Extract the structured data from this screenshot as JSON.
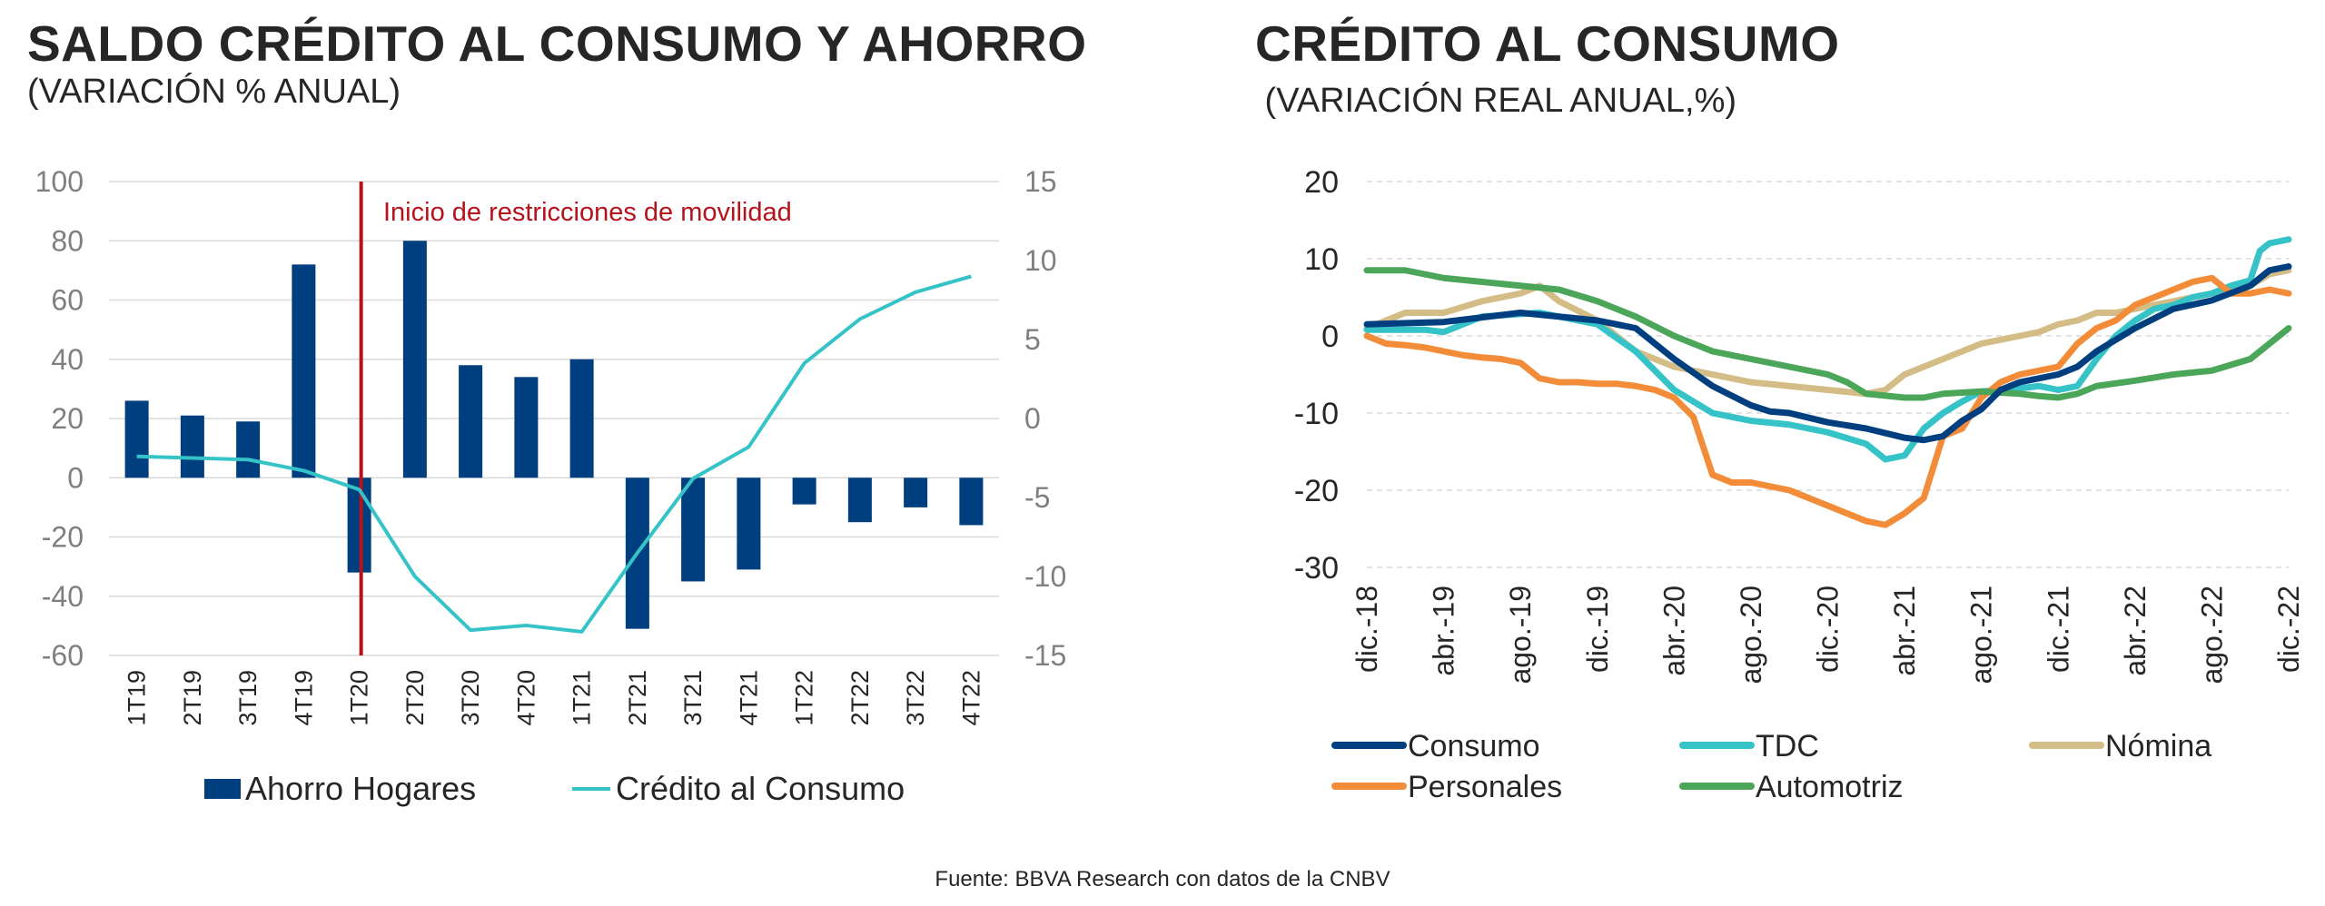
{
  "left": {
    "title": "SALDO CRÉDITO AL CONSUMO Y AHORRO",
    "subtitle": "(VARIACIÓN % ANUAL)",
    "annotation": "Inicio de restricciones de movilidad",
    "legend": [
      "Ahorro Hogares",
      "Crédito al Consumo"
    ]
  },
  "right": {
    "title": "CRÉDITO AL CONSUMO",
    "subtitle": " (VARIACIÓN REAL ANUAL,%)"
  },
  "source": "Fuente: BBVA Research con datos de la CNBV",
  "colors": {
    "navy": "#003F7F",
    "cyan": "#35C3C8",
    "red": "#B5121B",
    "tan": "#D4BC86",
    "orange": "#F28C38",
    "green": "#4CA65A",
    "grid": "#D9D9D9",
    "axis": "#7F7F7F"
  },
  "chart_data": [
    {
      "type": "bar",
      "title": "SALDO CRÉDITO AL CONSUMO Y AHORRO",
      "subtitle": "(VARIACIÓN % ANUAL)",
      "categories": [
        "1T19",
        "2T19",
        "3T19",
        "4T19",
        "1T20",
        "2T20",
        "3T20",
        "4T20",
        "1T21",
        "2T21",
        "3T21",
        "4T21",
        "1T22",
        "2T22",
        "3T22",
        "4T22"
      ],
      "series": [
        {
          "name": "Ahorro Hogares",
          "kind": "bar",
          "axis": "left",
          "values": [
            26,
            21,
            19,
            72,
            -32,
            80,
            38,
            34,
            40,
            -51,
            -35,
            -31,
            -9,
            -15,
            -10,
            -16
          ]
        },
        {
          "name": "Crédito al Consumo",
          "kind": "line",
          "axis": "right",
          "values": [
            -2.4,
            -2.5,
            -2.6,
            -3.3,
            -4.5,
            -10.0,
            -13.4,
            -13.1,
            -13.5,
            -8.5,
            -3.8,
            -1.8,
            3.5,
            6.3,
            8.0,
            9.0
          ]
        }
      ],
      "ylim_left": [
        -60,
        100
      ],
      "yticks_left": [
        100,
        80,
        60,
        40,
        20,
        0,
        -20,
        -40,
        -60
      ],
      "ylim_right": [
        -15,
        15
      ],
      "yticks_right": [
        15,
        10,
        5,
        0,
        -5,
        -10,
        -15
      ],
      "annotation": {
        "text": "Inicio de restricciones de movilidad",
        "at_category": "1T20"
      },
      "legend": [
        "Ahorro Hogares",
        "Crédito al Consumo"
      ],
      "grid": true
    },
    {
      "type": "line",
      "title": "CRÉDITO AL CONSUMO",
      "subtitle": "(VARIACIÓN REAL ANUAL,%)",
      "x_ticks": [
        "dic.-18",
        "abr.-19",
        "ago.-19",
        "dic.-19",
        "abr.-20",
        "ago.-20",
        "dic.-20",
        "abr.-21",
        "ago.-21",
        "dic.-21",
        "abr.-22",
        "ago.-22",
        "dic.-22"
      ],
      "x_range_months": [
        0,
        48
      ],
      "ylim": [
        -30,
        20
      ],
      "yticks": [
        20,
        10,
        0,
        -10,
        -20,
        -30
      ],
      "grid": true,
      "legend": [
        "Consumo",
        "TDC",
        "Nómina",
        "Personales",
        "Automotriz"
      ],
      "series": [
        {
          "name": "Consumo",
          "color": "#003F7F",
          "points": [
            [
              0,
              1.5
            ],
            [
              4,
              1.8
            ],
            [
              8,
              3
            ],
            [
              12,
              2
            ],
            [
              14,
              1
            ],
            [
              16,
              -3
            ],
            [
              18,
              -6.5
            ],
            [
              20,
              -9
            ],
            [
              21,
              -9.8
            ],
            [
              22,
              -10
            ],
            [
              24,
              -11.2
            ],
            [
              26,
              -12
            ],
            [
              28,
              -13.2
            ],
            [
              29,
              -13.5
            ],
            [
              30,
              -13
            ],
            [
              31,
              -11
            ],
            [
              32,
              -9.5
            ],
            [
              33,
              -7
            ],
            [
              34,
              -6
            ],
            [
              35,
              -5.5
            ],
            [
              36,
              -5
            ],
            [
              37,
              -4
            ],
            [
              38,
              -2
            ],
            [
              40,
              1
            ],
            [
              42,
              3.5
            ],
            [
              44,
              4.6
            ],
            [
              46,
              6.5
            ],
            [
              47,
              8.5
            ],
            [
              48,
              9
            ]
          ]
        },
        {
          "name": "TDC",
          "color": "#35C3C8",
          "points": [
            [
              0,
              0.8
            ],
            [
              3,
              0.8
            ],
            [
              4,
              0.5
            ],
            [
              6,
              2.5
            ],
            [
              9,
              3
            ],
            [
              12,
              1.5
            ],
            [
              14,
              -2
            ],
            [
              16,
              -7
            ],
            [
              18,
              -10
            ],
            [
              20,
              -11
            ],
            [
              22,
              -11.5
            ],
            [
              24,
              -12.5
            ],
            [
              26,
              -14
            ],
            [
              27,
              -16
            ],
            [
              28,
              -15.5
            ],
            [
              29,
              -12
            ],
            [
              30,
              -10
            ],
            [
              31,
              -8.5
            ],
            [
              32,
              -7.2
            ],
            [
              33,
              -7
            ],
            [
              34,
              -6.8
            ],
            [
              35,
              -6.5
            ],
            [
              36,
              -7
            ],
            [
              37,
              -6.5
            ],
            [
              38,
              -3
            ],
            [
              39,
              0
            ],
            [
              40,
              2
            ],
            [
              41,
              3.5
            ],
            [
              42,
              4
            ],
            [
              43,
              5
            ],
            [
              44,
              5.5
            ],
            [
              45,
              6.5
            ],
            [
              46,
              7.2
            ],
            [
              46.5,
              11
            ],
            [
              47,
              12
            ],
            [
              48,
              12.5
            ]
          ]
        },
        {
          "name": "Nómina",
          "color": "#D4BC86",
          "points": [
            [
              0,
              1
            ],
            [
              2,
              3
            ],
            [
              4,
              3
            ],
            [
              6,
              4.5
            ],
            [
              8,
              5.5
            ],
            [
              9,
              6.5
            ],
            [
              10,
              4.5
            ],
            [
              12,
              2
            ],
            [
              13,
              0
            ],
            [
              14,
              -2
            ],
            [
              16,
              -4
            ],
            [
              18,
              -5
            ],
            [
              20,
              -6
            ],
            [
              22,
              -6.5
            ],
            [
              24,
              -7
            ],
            [
              26,
              -7.5
            ],
            [
              27,
              -7
            ],
            [
              28,
              -5
            ],
            [
              29,
              -4
            ],
            [
              30,
              -3
            ],
            [
              31,
              -2
            ],
            [
              32,
              -1
            ],
            [
              34,
              0
            ],
            [
              35,
              0.5
            ],
            [
              36,
              1.5
            ],
            [
              37,
              2
            ],
            [
              38,
              3
            ],
            [
              39,
              3
            ],
            [
              40,
              3.5
            ],
            [
              42,
              4.5
            ],
            [
              44,
              5.5
            ],
            [
              46,
              6.5
            ],
            [
              47,
              8
            ],
            [
              48,
              8.5
            ]
          ]
        },
        {
          "name": "Personales",
          "color": "#F28C38",
          "points": [
            [
              0,
              0
            ],
            [
              1,
              -1
            ],
            [
              2,
              -1.2
            ],
            [
              3,
              -1.5
            ],
            [
              4,
              -2
            ],
            [
              5,
              -2.5
            ],
            [
              6,
              -2.8
            ],
            [
              7,
              -3
            ],
            [
              8,
              -3.5
            ],
            [
              9,
              -5.5
            ],
            [
              10,
              -6
            ],
            [
              11,
              -6
            ],
            [
              12,
              -6.2
            ],
            [
              13,
              -6.2
            ],
            [
              14,
              -6.5
            ],
            [
              15,
              -7
            ],
            [
              16,
              -8
            ],
            [
              17,
              -10.5
            ],
            [
              18,
              -18
            ],
            [
              19,
              -19
            ],
            [
              20,
              -19
            ],
            [
              21,
              -19.5
            ],
            [
              22,
              -20
            ],
            [
              23,
              -21
            ],
            [
              24,
              -22
            ],
            [
              25,
              -23
            ],
            [
              26,
              -24
            ],
            [
              27,
              -24.5
            ],
            [
              28,
              -23
            ],
            [
              29,
              -21
            ],
            [
              30,
              -13
            ],
            [
              31,
              -12
            ],
            [
              32,
              -8
            ],
            [
              33,
              -6
            ],
            [
              34,
              -5
            ],
            [
              35,
              -4.5
            ],
            [
              36,
              -4
            ],
            [
              37,
              -1
            ],
            [
              38,
              1
            ],
            [
              39,
              2
            ],
            [
              40,
              4
            ],
            [
              41,
              5
            ],
            [
              42,
              6
            ],
            [
              43,
              7
            ],
            [
              44,
              7.5
            ],
            [
              45,
              5.5
            ],
            [
              46,
              5.5
            ],
            [
              47,
              6
            ],
            [
              48,
              5.5
            ]
          ]
        },
        {
          "name": "Automotriz",
          "color": "#4CA65A",
          "points": [
            [
              0,
              8.5
            ],
            [
              2,
              8.5
            ],
            [
              4,
              7.5
            ],
            [
              6,
              7
            ],
            [
              8,
              6.5
            ],
            [
              10,
              6
            ],
            [
              12,
              4.5
            ],
            [
              14,
              2.5
            ],
            [
              16,
              0
            ],
            [
              18,
              -2
            ],
            [
              20,
              -3
            ],
            [
              22,
              -4
            ],
            [
              24,
              -5
            ],
            [
              25,
              -6
            ],
            [
              26,
              -7.5
            ],
            [
              28,
              -8
            ],
            [
              29,
              -8
            ],
            [
              30,
              -7.5
            ],
            [
              32,
              -7.2
            ],
            [
              34,
              -7.5
            ],
            [
              35,
              -7.8
            ],
            [
              36,
              -8
            ],
            [
              37,
              -7.5
            ],
            [
              38,
              -6.5
            ],
            [
              40,
              -5.8
            ],
            [
              42,
              -5
            ],
            [
              44,
              -4.5
            ],
            [
              46,
              -3
            ],
            [
              47,
              -1
            ],
            [
              48,
              1
            ]
          ]
        }
      ]
    }
  ]
}
